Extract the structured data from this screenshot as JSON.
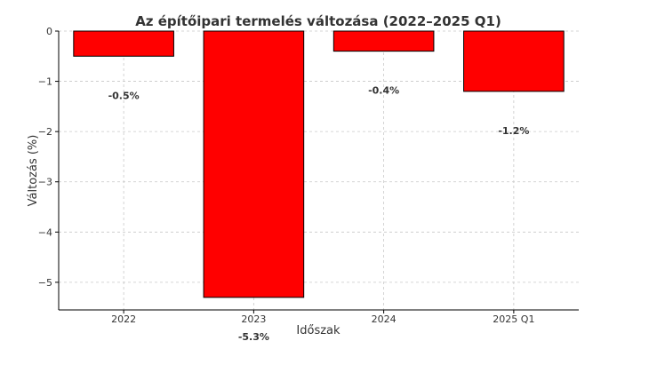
{
  "chart_data": {
    "type": "bar",
    "title": "Az építőipari termelés változása (2022–2025 Q1)",
    "xlabel": "Időszak",
    "ylabel": "Változás (%)",
    "categories": [
      "2022",
      "2023",
      "2024",
      "2025 Q1"
    ],
    "values": [
      -0.5,
      -5.3,
      -0.4,
      -1.2
    ],
    "data_labels": [
      "-0.5%",
      "-5.3%",
      "-0.4%",
      "-1.2%"
    ],
    "yticks": [
      0,
      -1,
      -2,
      -3,
      -4,
      -5
    ],
    "ytick_labels": [
      "0",
      "−1",
      "−2",
      "−3",
      "−4",
      "−5"
    ],
    "ylim": [
      -5.55,
      0
    ],
    "grid": true,
    "bar_color": "#ff0000",
    "bar_edge_color": "#000000"
  }
}
